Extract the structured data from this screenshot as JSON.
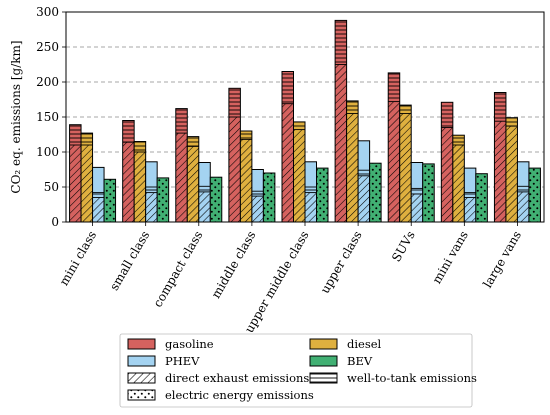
{
  "chart_data": {
    "type": "bar",
    "ylabel": "CO₂ eq. emissions [g/km]",
    "ylim": [
      0,
      300
    ],
    "yticks": [
      0,
      50,
      100,
      150,
      200,
      250,
      300
    ],
    "grid": "horizontal dashed",
    "categories": [
      "mini class",
      "small class",
      "compact class",
      "middle class",
      "upper middle class",
      "upper class",
      "SUVs",
      "mini vans",
      "large vans"
    ],
    "series": [
      {
        "name": "gasoline",
        "color": "#d5625f",
        "total": [
          139,
          145,
          162,
          191,
          215,
          288,
          213,
          171,
          185
        ],
        "direct_exhaust": [
          110,
          114,
          127,
          150,
          169,
          225,
          172,
          135,
          144
        ]
      },
      {
        "name": "diesel",
        "color": "#dfb03f",
        "total": [
          127,
          115,
          122,
          130,
          143,
          173,
          167,
          124,
          149
        ],
        "direct_exhaust": [
          110,
          100,
          108,
          118,
          132,
          155,
          155,
          110,
          137
        ]
      },
      {
        "name": "PHEV",
        "color": "#a4d3f1",
        "total": [
          78,
          86,
          85,
          75,
          86,
          116,
          85,
          77,
          86
        ],
        "direct_exhaust": [
          35,
          42,
          43,
          37,
          42,
          66,
          40,
          35,
          43
        ],
        "electric_energy": [
          7,
          8,
          8,
          7,
          8,
          8,
          8,
          7,
          8
        ]
      },
      {
        "name": "BEV",
        "color": "#41b073",
        "total": [
          61,
          63,
          64,
          70,
          77,
          84,
          83,
          69,
          77
        ]
      }
    ],
    "legend": {
      "placement": "bottom-center",
      "entries": [
        {
          "label": "gasoline",
          "kind": "gasoline"
        },
        {
          "label": "diesel",
          "kind": "diesel"
        },
        {
          "label": "PHEV",
          "kind": "phev"
        },
        {
          "label": "BEV",
          "kind": "bev"
        },
        {
          "label": "direct exhaust emissions",
          "kind": "hatch"
        },
        {
          "label": "well-to-tank emissions",
          "kind": "lines"
        },
        {
          "label": "electric energy emissions",
          "kind": "dots"
        }
      ]
    }
  }
}
